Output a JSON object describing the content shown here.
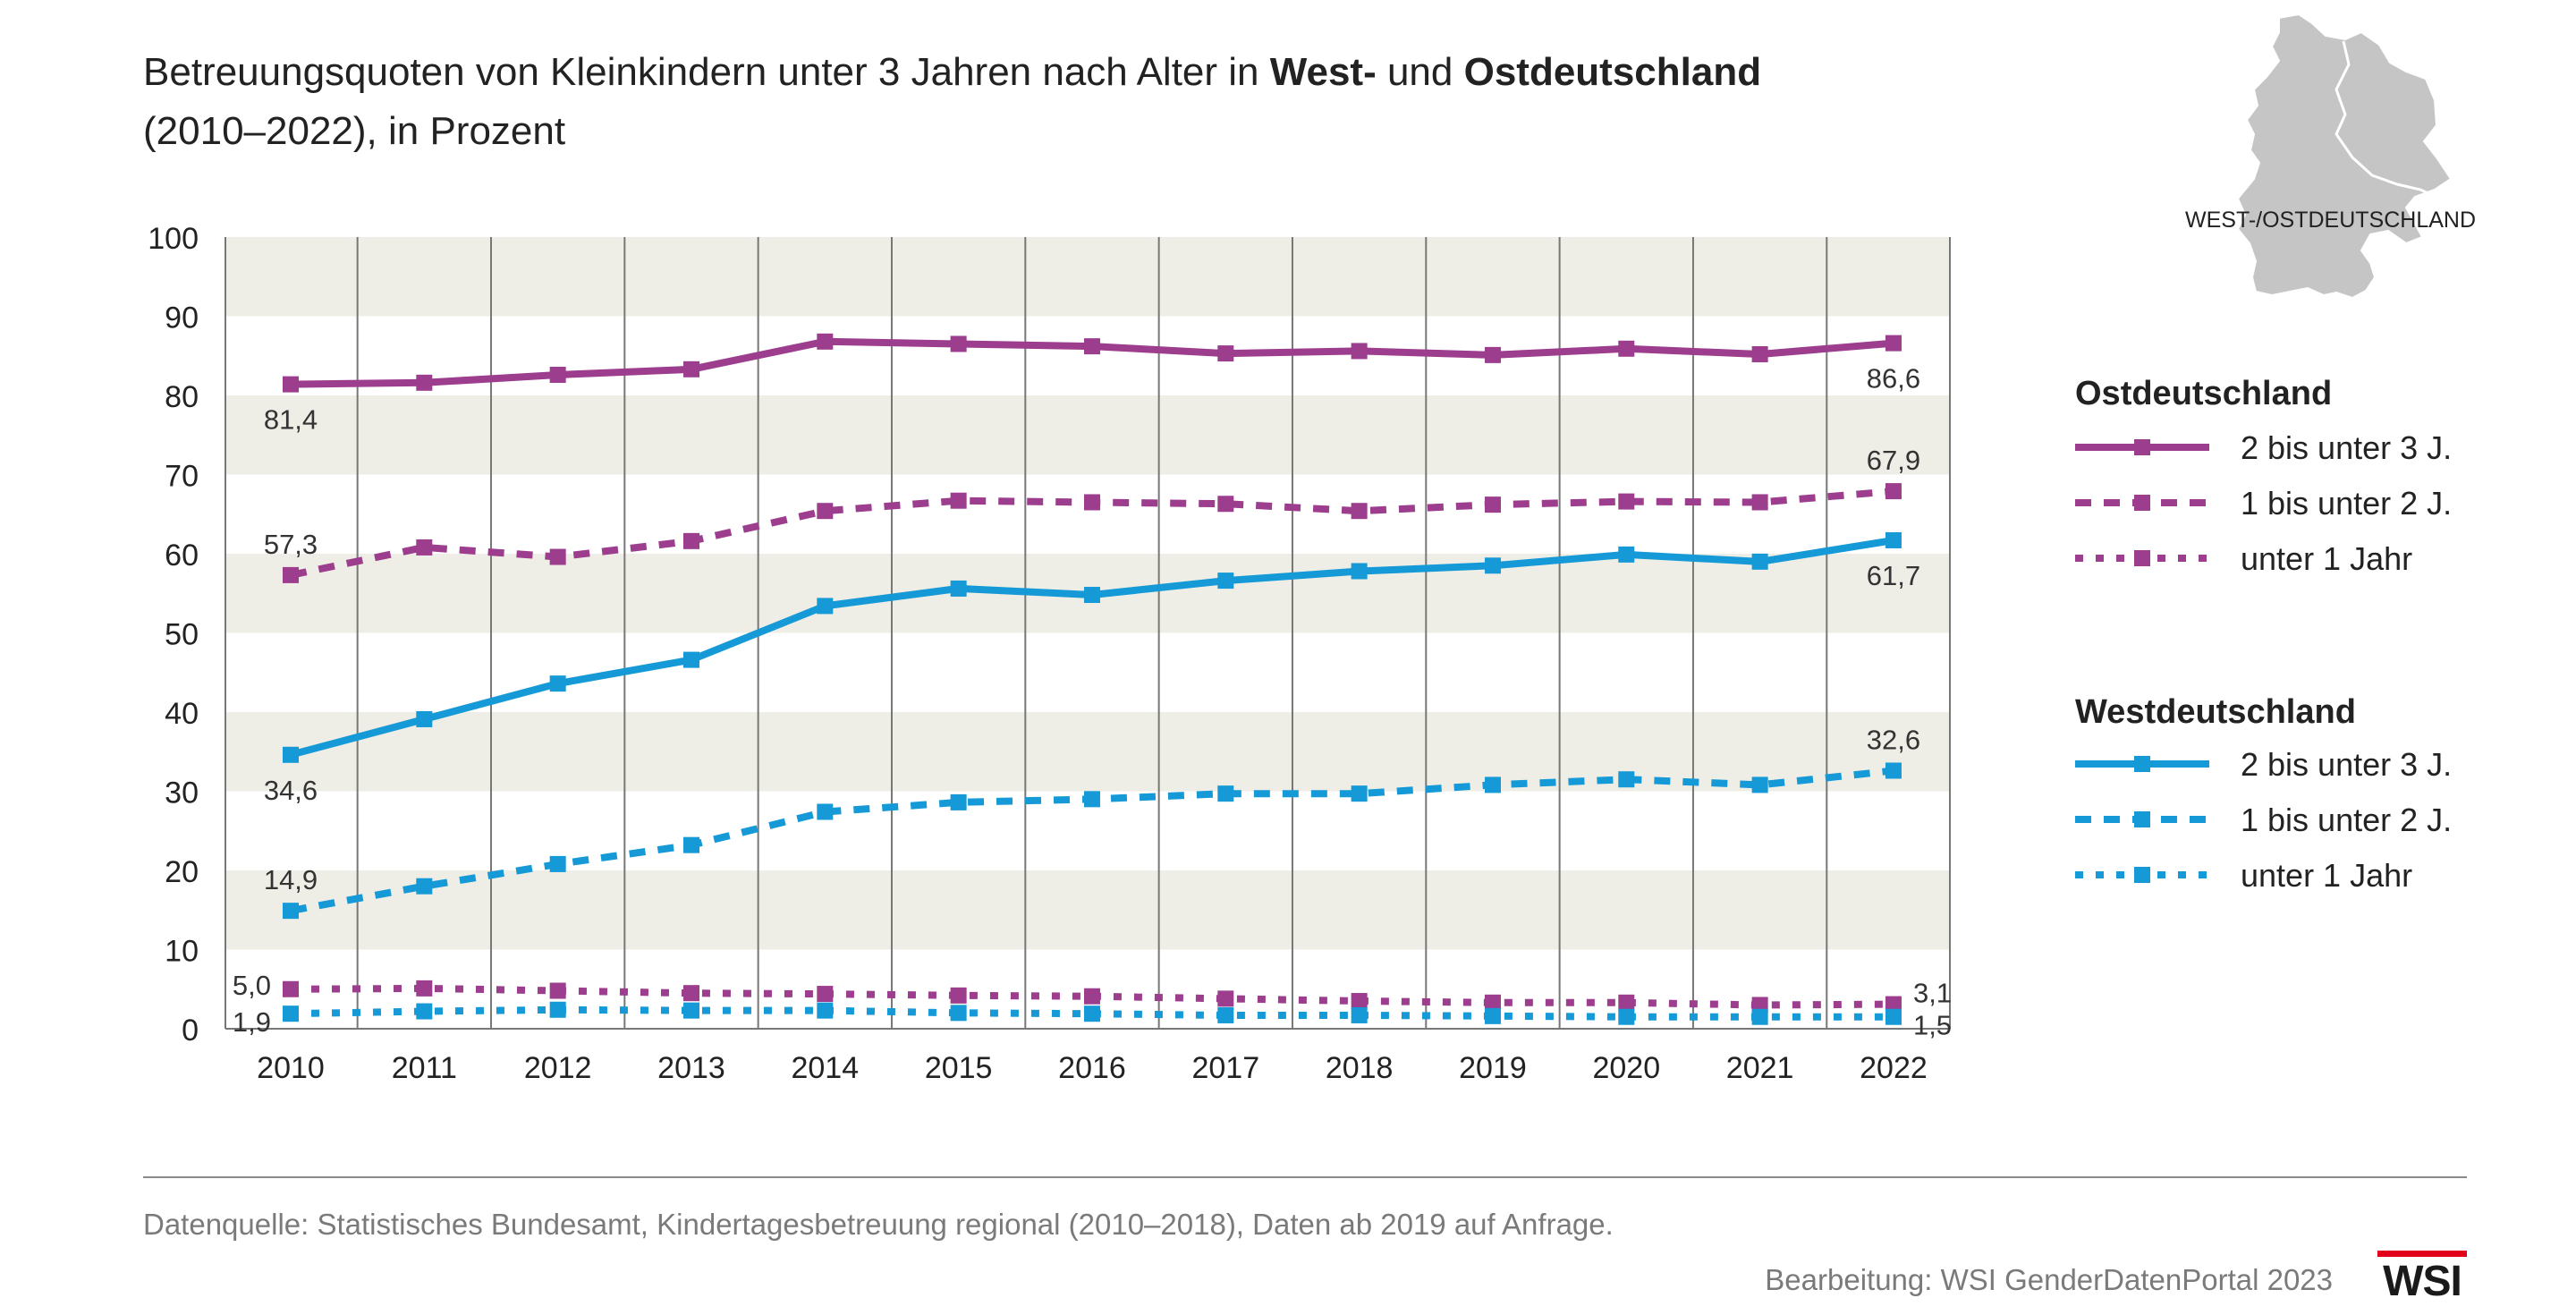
{
  "title": {
    "part1": "Betreuungsquoten von Kleinkindern unter 3 Jahren nach Alter in ",
    "west": "West-",
    "part2": " und ",
    "ost": "Ostdeutschland",
    "line2": "(2010–2022), in Prozent"
  },
  "map_caption": "WEST-/OSTDEUTSCHLAND",
  "legend": {
    "ost_heading": "Ostdeutschland",
    "west_heading": "Westdeutschland"
  },
  "colors": {
    "ost": "#9c3d8e",
    "west": "#159ad7",
    "band": "#eeeee6",
    "grid": "#777777",
    "map": "#c5c5c5",
    "logo_red": "#e2001a"
  },
  "icons": [
    "germany-map-icon",
    "wsi-logo"
  ],
  "source": "Datenquelle: Statistisches Bundesamt, Kindertagesbetreuung regional (2010–2018), Daten ab 2019 auf Anfrage.",
  "credit": "Bearbeitung: WSI GenderDatenPortal 2023",
  "logo_text": "WSI",
  "chart_data": {
    "type": "line",
    "title": "Betreuungsquoten von Kleinkindern unter 3 Jahren nach Alter in West- und Ostdeutschland (2010–2022), in Prozent",
    "xlabel": "",
    "ylabel": "",
    "ylim": [
      0,
      100
    ],
    "yticks": [
      0,
      10,
      20,
      30,
      40,
      50,
      60,
      70,
      80,
      90,
      100
    ],
    "grid": "vertical lines at each year, alternating horizontal bands",
    "legend_position": "right",
    "x": [
      2010,
      2011,
      2012,
      2013,
      2014,
      2015,
      2016,
      2017,
      2018,
      2019,
      2020,
      2021,
      2022
    ],
    "series": [
      {
        "name": "2 bis unter 3 J.",
        "group": "Ostdeutschland",
        "color": "#9c3d8e",
        "line": "solid",
        "values": [
          81.4,
          81.6,
          82.6,
          83.3,
          86.8,
          86.5,
          86.2,
          85.3,
          85.6,
          85.1,
          85.9,
          85.2,
          86.6
        ]
      },
      {
        "name": "1 bis unter 2 J.",
        "group": "Ostdeutschland",
        "color": "#9c3d8e",
        "line": "dashed",
        "values": [
          57.3,
          60.8,
          59.6,
          61.6,
          65.4,
          66.7,
          66.5,
          66.3,
          65.4,
          66.2,
          66.6,
          66.5,
          67.9
        ]
      },
      {
        "name": "unter 1 Jahr",
        "group": "Ostdeutschland",
        "color": "#9c3d8e",
        "line": "dotted",
        "values": [
          5.0,
          5.1,
          4.8,
          4.5,
          4.4,
          4.2,
          4.1,
          3.8,
          3.5,
          3.3,
          3.3,
          3.0,
          3.1
        ]
      },
      {
        "name": "2 bis unter 3 J.",
        "group": "Westdeutschland",
        "color": "#159ad7",
        "line": "solid",
        "values": [
          34.6,
          39.1,
          43.6,
          46.6,
          53.4,
          55.6,
          54.8,
          56.6,
          57.8,
          58.5,
          59.9,
          59.0,
          61.7
        ]
      },
      {
        "name": "1 bis unter 2 J.",
        "group": "Westdeutschland",
        "color": "#159ad7",
        "line": "dashed",
        "values": [
          14.9,
          18.0,
          20.8,
          23.2,
          27.4,
          28.6,
          29.0,
          29.7,
          29.7,
          30.8,
          31.5,
          30.8,
          32.6
        ]
      },
      {
        "name": "unter 1 Jahr",
        "group": "Westdeutschland",
        "color": "#159ad7",
        "line": "dotted",
        "values": [
          1.9,
          2.2,
          2.4,
          2.3,
          2.3,
          2.0,
          1.9,
          1.7,
          1.7,
          1.6,
          1.5,
          1.5,
          1.5
        ]
      }
    ],
    "data_labels": [
      {
        "series": 0,
        "index": 0,
        "text": "81,4",
        "place": "below"
      },
      {
        "series": 0,
        "index": 12,
        "text": "86,6",
        "place": "below"
      },
      {
        "series": 1,
        "index": 0,
        "text": "57,3",
        "place": "above"
      },
      {
        "series": 1,
        "index": 12,
        "text": "67,9",
        "place": "above"
      },
      {
        "series": 2,
        "index": 0,
        "text": "5,0",
        "place": "left"
      },
      {
        "series": 2,
        "index": 12,
        "text": "3,1",
        "place": "right"
      },
      {
        "series": 3,
        "index": 0,
        "text": "34,6",
        "place": "below"
      },
      {
        "series": 3,
        "index": 12,
        "text": "61,7",
        "place": "below"
      },
      {
        "series": 4,
        "index": 0,
        "text": "14,9",
        "place": "above"
      },
      {
        "series": 4,
        "index": 12,
        "text": "32,6",
        "place": "above"
      },
      {
        "series": 5,
        "index": 0,
        "text": "1,9",
        "place": "left"
      },
      {
        "series": 5,
        "index": 12,
        "text": "1,5",
        "place": "right"
      }
    ]
  }
}
